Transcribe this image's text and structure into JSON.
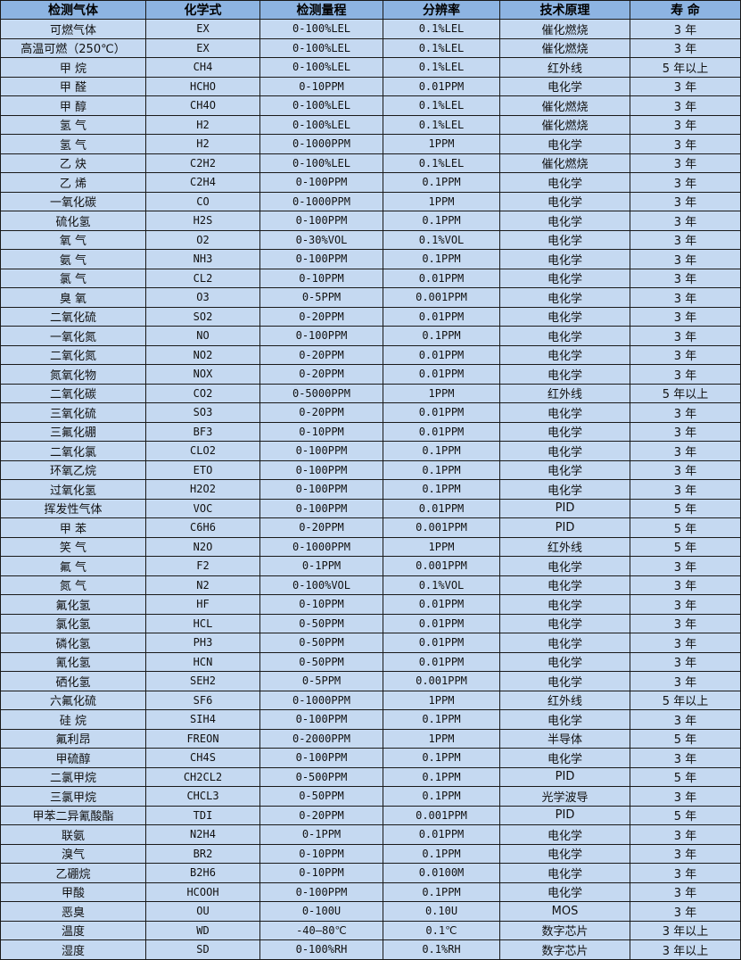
{
  "colors": {
    "header_bg": "#8db4e2",
    "row_bg": "#c5d9f1",
    "border": "#1a1a1a"
  },
  "table": {
    "headers": [
      "检测气体",
      "化学式",
      "检测量程",
      "分辨率",
      "技术原理",
      "寿 命"
    ],
    "rows": [
      [
        "可燃气体",
        "EX",
        "0-100%LEL",
        "0.1%LEL",
        "催化燃烧",
        "3 年"
      ],
      [
        "高温可燃（250℃）",
        "EX",
        "0-100%LEL",
        "0.1%LEL",
        "催化燃烧",
        "3 年"
      ],
      [
        "甲 烷",
        "CH4",
        "0-100%LEL",
        "0.1%LEL",
        "红外线",
        "5 年以上"
      ],
      [
        "甲 醛",
        "HCHO",
        "0-10PPM",
        "0.01PPM",
        "电化学",
        "3 年"
      ],
      [
        "甲 醇",
        "CH4O",
        "0-100%LEL",
        "0.1%LEL",
        "催化燃烧",
        "3 年"
      ],
      [
        "氢 气",
        "H2",
        "0-100%LEL",
        "0.1%LEL",
        "催化燃烧",
        "3 年"
      ],
      [
        "氢 气",
        "H2",
        "0-1000PPM",
        "1PPM",
        "电化学",
        "3 年"
      ],
      [
        "乙 炔",
        "C2H2",
        "0-100%LEL",
        "0.1%LEL",
        "催化燃烧",
        "3 年"
      ],
      [
        "乙 烯",
        "C2H4",
        "0-100PPM",
        "0.1PPM",
        "电化学",
        "3 年"
      ],
      [
        "一氧化碳",
        "CO",
        "0-1000PPM",
        "1PPM",
        "电化学",
        "3 年"
      ],
      [
        "硫化氢",
        "H2S",
        "0-100PPM",
        "0.1PPM",
        "电化学",
        "3 年"
      ],
      [
        "氧 气",
        "O2",
        "0-30%VOL",
        "0.1%VOL",
        "电化学",
        "3 年"
      ],
      [
        "氨 气",
        "NH3",
        "0-100PPM",
        "0.1PPM",
        "电化学",
        "3 年"
      ],
      [
        "氯 气",
        "CL2",
        "0-10PPM",
        "0.01PPM",
        "电化学",
        "3 年"
      ],
      [
        "臭 氧",
        "O3",
        "0-5PPM",
        "0.001PPM",
        "电化学",
        "3 年"
      ],
      [
        "二氧化硫",
        "SO2",
        "0-20PPM",
        "0.01PPM",
        "电化学",
        "3 年"
      ],
      [
        "一氧化氮",
        "NO",
        "0-100PPM",
        "0.1PPM",
        "电化学",
        "3 年"
      ],
      [
        "二氧化氮",
        "NO2",
        "0-20PPM",
        "0.01PPM",
        "电化学",
        "3 年"
      ],
      [
        "氮氧化物",
        "NOX",
        "0-20PPM",
        "0.01PPM",
        "电化学",
        "3 年"
      ],
      [
        "二氧化碳",
        "CO2",
        "0-5000PPM",
        "1PPM",
        "红外线",
        "5 年以上"
      ],
      [
        "三氧化硫",
        "SO3",
        "0-20PPM",
        "0.01PPM",
        "电化学",
        "3 年"
      ],
      [
        "三氟化硼",
        "BF3",
        "0-10PPM",
        "0.01PPM",
        "电化学",
        "3 年"
      ],
      [
        "二氧化氯",
        "CLO2",
        "0-100PPM",
        "0.1PPM",
        "电化学",
        "3 年"
      ],
      [
        "环氧乙烷",
        "ETO",
        "0-100PPM",
        "0.1PPM",
        "电化学",
        "3 年"
      ],
      [
        "过氧化氢",
        "H2O2",
        "0-100PPM",
        "0.1PPM",
        "电化学",
        "3 年"
      ],
      [
        "挥发性气体",
        "VOC",
        "0-100PPM",
        "0.01PPM",
        "PID",
        "5 年"
      ],
      [
        "甲 苯",
        "C6H6",
        "0-20PPM",
        "0.001PPM",
        "PID",
        "5 年"
      ],
      [
        "笑 气",
        "N2O",
        "0-1000PPM",
        "1PPM",
        "红外线",
        "5 年"
      ],
      [
        "氟 气",
        "F2",
        "0-1PPM",
        "0.001PPM",
        "电化学",
        "3 年"
      ],
      [
        "氮 气",
        "N2",
        "0-100%VOL",
        "0.1%VOL",
        "电化学",
        "3 年"
      ],
      [
        "氟化氢",
        "HF",
        "0-10PPM",
        "0.01PPM",
        "电化学",
        "3 年"
      ],
      [
        "氯化氢",
        "HCL",
        "0-50PPM",
        "0.01PPM",
        "电化学",
        "3 年"
      ],
      [
        "磷化氢",
        "PH3",
        "0-50PPM",
        "0.01PPM",
        "电化学",
        "3 年"
      ],
      [
        "氰化氢",
        "HCN",
        "0-50PPM",
        "0.01PPM",
        "电化学",
        "3 年"
      ],
      [
        "硒化氢",
        "SEH2",
        "0-5PPM",
        "0.001PPM",
        "电化学",
        "3 年"
      ],
      [
        "六氟化硫",
        "SF6",
        "0-1000PPM",
        "1PPM",
        "红外线",
        "5 年以上"
      ],
      [
        "硅 烷",
        "SIH4",
        "0-100PPM",
        "0.1PPM",
        "电化学",
        "3 年"
      ],
      [
        "氟利昂",
        "FREON",
        "0-2000PPM",
        "1PPM",
        "半导体",
        "5 年"
      ],
      [
        "甲硫醇",
        "CH4S",
        "0-100PPM",
        "0.1PPM",
        "电化学",
        "3 年"
      ],
      [
        "二氯甲烷",
        "CH2CL2",
        "0-500PPM",
        "0.1PPM",
        "PID",
        "5 年"
      ],
      [
        "三氯甲烷",
        "CHCL3",
        "0-50PPM",
        "0.1PPM",
        "光学波导",
        "3 年"
      ],
      [
        "甲苯二异氰酸酯",
        "TDI",
        "0-20PPM",
        "0.001PPM",
        "PID",
        "5 年"
      ],
      [
        "联氨",
        "N2H4",
        "0-1PPM",
        "0.01PPM",
        "电化学",
        "3 年"
      ],
      [
        "溴气",
        "BR2",
        "0-10PPM",
        "0.1PPM",
        "电化学",
        "3 年"
      ],
      [
        "乙硼烷",
        "B2H6",
        "0-10PPM",
        "0.0100M",
        "电化学",
        "3 年"
      ],
      [
        "甲酸",
        "HCOOH",
        "0-100PPM",
        "0.1PPM",
        "电化学",
        "3 年"
      ],
      [
        "恶臭",
        "OU",
        "0-100U",
        "0.10U",
        "MOS",
        "3 年"
      ],
      [
        "温度",
        "WD",
        "-40—80℃",
        "0.1℃",
        "数字芯片",
        "3 年以上"
      ],
      [
        "湿度",
        "SD",
        "0-100%RH",
        "0.1%RH",
        "数字芯片",
        "3 年以上"
      ]
    ]
  }
}
